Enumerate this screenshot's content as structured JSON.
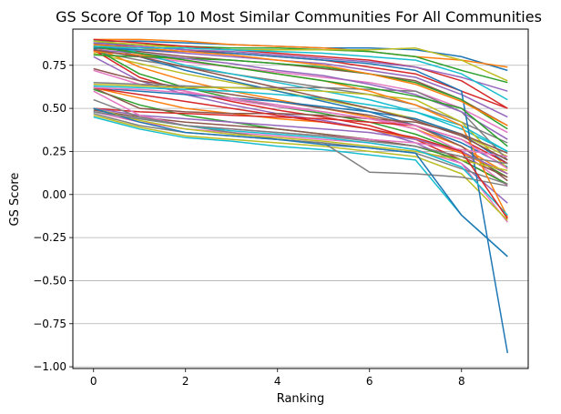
{
  "chart_data": {
    "type": "line",
    "title": "GS Score Of Top 10 Most Similar Communities For All Communities",
    "xlabel": "Ranking",
    "ylabel": "GS Score",
    "xlim": [
      -0.45,
      9.45
    ],
    "ylim": [
      -1.01,
      0.96
    ],
    "x": [
      0,
      1,
      2,
      3,
      4,
      5,
      6,
      7,
      8,
      9
    ],
    "x_ticks": [
      "0",
      "2",
      "4",
      "6",
      "8"
    ],
    "x_tick_values": [
      0,
      2,
      4,
      6,
      8
    ],
    "y_ticks": [
      "−1.00",
      "−0.75",
      "−0.50",
      "−0.25",
      "0.00",
      "0.25",
      "0.50",
      "0.75"
    ],
    "y_tick_values": [
      -1.0,
      -0.75,
      -0.5,
      -0.25,
      0.0,
      0.25,
      0.5,
      0.75
    ],
    "grid": "horizontal",
    "legend": "none",
    "colors": [
      "#1f77b4",
      "#ff7f0e",
      "#2ca02c",
      "#d62728",
      "#9467bd",
      "#8c564b",
      "#e377c2",
      "#7f7f7f",
      "#bcbd22",
      "#17becf"
    ],
    "series": [
      {
        "values": [
          0.89,
          0.89,
          0.88,
          0.87,
          0.86,
          0.85,
          0.85,
          0.84,
          0.8,
          0.72
        ]
      },
      {
        "values": [
          0.9,
          0.9,
          0.89,
          0.87,
          0.86,
          0.85,
          0.83,
          0.8,
          0.78,
          0.74
        ]
      },
      {
        "values": [
          0.88,
          0.87,
          0.86,
          0.85,
          0.85,
          0.84,
          0.83,
          0.8,
          0.72,
          0.65
        ]
      },
      {
        "values": [
          0.87,
          0.86,
          0.84,
          0.82,
          0.8,
          0.78,
          0.74,
          0.7,
          0.6,
          0.5
        ]
      },
      {
        "values": [
          0.86,
          0.84,
          0.82,
          0.8,
          0.78,
          0.76,
          0.72,
          0.68,
          0.58,
          0.45
        ]
      },
      {
        "values": [
          0.85,
          0.83,
          0.8,
          0.78,
          0.76,
          0.73,
          0.7,
          0.66,
          0.55,
          0.4
        ]
      },
      {
        "values": [
          0.84,
          0.8,
          0.77,
          0.74,
          0.71,
          0.68,
          0.65,
          0.6,
          0.5,
          0.36
        ]
      },
      {
        "values": [
          0.83,
          0.78,
          0.74,
          0.7,
          0.66,
          0.62,
          0.58,
          0.52,
          0.42,
          0.3
        ]
      },
      {
        "values": [
          0.82,
          0.76,
          0.7,
          0.65,
          0.6,
          0.55,
          0.5,
          0.44,
          0.35,
          0.22
        ]
      },
      {
        "values": [
          0.9,
          0.82,
          0.75,
          0.7,
          0.65,
          0.6,
          0.55,
          0.48,
          0.38,
          0.25
        ]
      },
      {
        "values": [
          0.88,
          0.8,
          0.72,
          0.66,
          0.6,
          0.54,
          0.48,
          0.4,
          0.3,
          0.16
        ]
      },
      {
        "values": [
          0.86,
          0.74,
          0.66,
          0.6,
          0.55,
          0.5,
          0.45,
          0.38,
          0.28,
          0.12
        ]
      },
      {
        "values": [
          0.85,
          0.7,
          0.62,
          0.56,
          0.51,
          0.47,
          0.42,
          0.35,
          0.25,
          0.1
        ]
      },
      {
        "values": [
          0.84,
          0.68,
          0.6,
          0.54,
          0.49,
          0.45,
          0.4,
          0.32,
          0.2,
          0.06
        ]
      },
      {
        "values": [
          0.8,
          0.66,
          0.58,
          0.52,
          0.47,
          0.43,
          0.38,
          0.3,
          0.18,
          -0.05
        ]
      },
      {
        "values": [
          0.73,
          0.66,
          0.62,
          0.58,
          0.54,
          0.5,
          0.46,
          0.4,
          0.28,
          0.08
        ]
      },
      {
        "values": [
          0.72,
          0.64,
          0.6,
          0.55,
          0.51,
          0.48,
          0.44,
          0.38,
          0.25,
          0.05
        ]
      },
      {
        "values": [
          0.65,
          0.64,
          0.63,
          0.62,
          0.62,
          0.62,
          0.61,
          0.6,
          0.48,
          0.2
        ]
      },
      {
        "values": [
          0.64,
          0.63,
          0.62,
          0.62,
          0.61,
          0.6,
          0.58,
          0.55,
          0.42,
          0.15
        ]
      },
      {
        "values": [
          0.63,
          0.62,
          0.61,
          0.6,
          0.58,
          0.56,
          0.52,
          0.48,
          0.4,
          0.25
        ]
      },
      {
        "values": [
          0.62,
          0.6,
          0.58,
          0.56,
          0.54,
          0.51,
          0.48,
          0.44,
          0.35,
          0.18
        ]
      },
      {
        "values": [
          0.62,
          0.56,
          0.5,
          0.47,
          0.44,
          0.42,
          0.38,
          0.32,
          0.24,
          0.12
        ]
      },
      {
        "values": [
          0.61,
          0.52,
          0.46,
          0.42,
          0.38,
          0.35,
          0.32,
          0.28,
          0.2,
          0.06
        ]
      },
      {
        "values": [
          0.5,
          0.48,
          0.47,
          0.46,
          0.45,
          0.44,
          0.42,
          0.4,
          0.32,
          0.18
        ]
      },
      {
        "values": [
          0.5,
          0.46,
          0.44,
          0.42,
          0.4,
          0.38,
          0.36,
          0.32,
          0.25,
          0.12
        ]
      },
      {
        "values": [
          0.49,
          0.45,
          0.42,
          0.4,
          0.38,
          0.35,
          0.32,
          0.28,
          0.22,
          0.1
        ]
      },
      {
        "values": [
          0.48,
          0.42,
          0.38,
          0.36,
          0.34,
          0.32,
          0.3,
          0.26,
          0.18,
          -0.16
        ]
      },
      {
        "values": [
          0.47,
          0.4,
          0.36,
          0.34,
          0.32,
          0.3,
          0.27,
          0.24,
          0.15,
          0.06
        ]
      },
      {
        "values": [
          0.46,
          0.39,
          0.34,
          0.32,
          0.3,
          0.28,
          0.25,
          0.22,
          0.12,
          -0.15
        ]
      },
      {
        "values": [
          0.45,
          0.38,
          0.33,
          0.31,
          0.28,
          0.26,
          0.23,
          0.2,
          -0.12,
          -0.36
        ]
      },
      {
        "values": [
          0.85,
          0.84,
          0.83,
          0.82,
          0.8,
          0.78,
          0.76,
          0.72,
          0.6,
          -0.92
        ]
      },
      {
        "values": [
          0.83,
          0.81,
          0.78,
          0.74,
          0.7,
          0.66,
          0.6,
          0.52,
          0.4,
          -0.13
        ]
      },
      {
        "values": [
          0.81,
          0.8,
          0.79,
          0.78,
          0.76,
          0.74,
          0.7,
          0.65,
          0.55,
          0.38
        ]
      },
      {
        "values": [
          0.9,
          0.88,
          0.86,
          0.84,
          0.82,
          0.8,
          0.78,
          0.74,
          0.66,
          0.5
        ]
      },
      {
        "values": [
          0.84,
          0.82,
          0.79,
          0.76,
          0.72,
          0.69,
          0.64,
          0.58,
          0.48,
          0.32
        ]
      },
      {
        "values": [
          0.62,
          0.5,
          0.48,
          0.47,
          0.47,
          0.46,
          0.44,
          0.42,
          0.35,
          0.24
        ]
      },
      {
        "values": [
          0.6,
          0.46,
          0.4,
          0.38,
          0.36,
          0.34,
          0.32,
          0.3,
          0.26,
          0.22
        ]
      },
      {
        "values": [
          0.55,
          0.45,
          0.4,
          0.36,
          0.32,
          0.3,
          0.13,
          0.12,
          0.1,
          0.05
        ]
      },
      {
        "values": [
          0.5,
          0.43,
          0.38,
          0.35,
          0.33,
          0.31,
          0.28,
          0.25,
          0.2,
          0.14
        ]
      },
      {
        "values": [
          0.48,
          0.44,
          0.4,
          0.37,
          0.35,
          0.33,
          0.3,
          0.26,
          0.16,
          -0.12
        ]
      },
      {
        "values": [
          0.5,
          0.42,
          0.36,
          0.34,
          0.32,
          0.29,
          0.27,
          0.24,
          -0.12,
          -0.36
        ]
      },
      {
        "values": [
          0.87,
          0.85,
          0.83,
          0.81,
          0.78,
          0.75,
          0.7,
          0.64,
          0.54,
          0.4
        ]
      },
      {
        "values": [
          0.86,
          0.82,
          0.78,
          0.74,
          0.7,
          0.66,
          0.62,
          0.57,
          0.5,
          0.28
        ]
      },
      {
        "values": [
          0.62,
          0.58,
          0.54,
          0.5,
          0.46,
          0.42,
          0.38,
          0.33,
          0.25,
          -0.14
        ]
      },
      {
        "values": [
          0.88,
          0.86,
          0.84,
          0.83,
          0.81,
          0.79,
          0.77,
          0.74,
          0.68,
          0.6
        ]
      },
      {
        "values": [
          0.84,
          0.8,
          0.74,
          0.68,
          0.62,
          0.56,
          0.5,
          0.43,
          0.34,
          0.2
        ]
      },
      {
        "values": [
          0.62,
          0.61,
          0.59,
          0.56,
          0.52,
          0.48,
          0.44,
          0.4,
          0.32,
          0.15
        ]
      },
      {
        "values": [
          0.48,
          0.44,
          0.4,
          0.38,
          0.36,
          0.34,
          0.31,
          0.28,
          0.22,
          0.18
        ]
      },
      {
        "values": [
          0.89,
          0.87,
          0.85,
          0.84,
          0.84,
          0.84,
          0.84,
          0.85,
          0.78,
          0.66
        ]
      },
      {
        "values": [
          0.86,
          0.85,
          0.85,
          0.84,
          0.83,
          0.82,
          0.8,
          0.78,
          0.7,
          0.55
        ]
      }
    ]
  }
}
